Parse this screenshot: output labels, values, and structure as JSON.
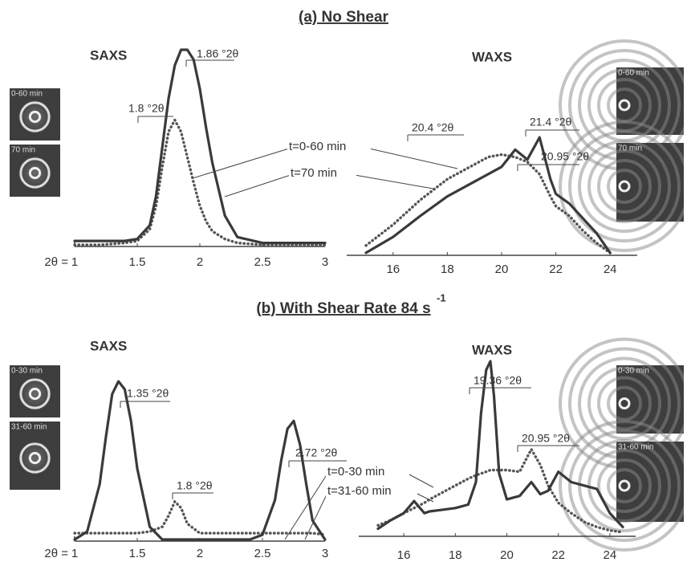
{
  "sections": [
    {
      "title": "(a) No Shear"
    },
    {
      "title": "(b) With Shear Rate 84 s",
      "superscript": "-1"
    }
  ],
  "chart_data": [
    {
      "type": "line",
      "title": "SAXS",
      "xlabel": "2θ =",
      "xlim": [
        1,
        3
      ],
      "xticks": [
        1,
        1.5,
        2,
        2.5,
        3
      ],
      "ylim": [
        0,
        100
      ],
      "image_labels": [
        "0-60 min",
        "70 min"
      ],
      "annotations": [
        "1.86 °2θ",
        "1.8 °2θ"
      ],
      "x": [
        1,
        1.2,
        1.4,
        1.5,
        1.6,
        1.65,
        1.7,
        1.75,
        1.8,
        1.85,
        1.9,
        1.95,
        2,
        2.05,
        2.1,
        2.2,
        2.3,
        2.5,
        2.8,
        3
      ],
      "series": [
        {
          "name": "t=0-60 min",
          "color": "#555555",
          "style": "dotted",
          "values": [
            0,
            0,
            1,
            2,
            8,
            20,
            40,
            58,
            64,
            58,
            45,
            32,
            20,
            12,
            7,
            3,
            1,
            0,
            0,
            0
          ]
        },
        {
          "name": "t=70 min",
          "color": "#3a3a3a",
          "style": "solid",
          "values": [
            2,
            2,
            2,
            3,
            10,
            25,
            50,
            75,
            92,
            100,
            100,
            95,
            80,
            60,
            42,
            15,
            4,
            1,
            1,
            1
          ]
        }
      ]
    },
    {
      "type": "line",
      "title": "WAXS",
      "xlim": [
        15,
        25
      ],
      "xticks": [
        16,
        18,
        20,
        22,
        24
      ],
      "ylim": [
        0,
        100
      ],
      "image_labels": [
        "0-60 min",
        "70 min"
      ],
      "annotations": [
        "20.4 °2θ",
        "21.4 °2θ",
        "20.95 °2θ"
      ],
      "x": [
        15,
        16,
        17,
        18,
        19,
        19.5,
        20,
        20.5,
        20.95,
        21.4,
        21.8,
        22,
        22.5,
        23,
        23.5,
        24
      ],
      "series": [
        {
          "color": "#555555",
          "style": "dotted",
          "values": [
            8,
            25,
            45,
            62,
            74,
            80,
            82,
            80,
            76,
            66,
            48,
            40,
            32,
            20,
            10,
            2
          ]
        },
        {
          "color": "#3a3a3a",
          "style": "solid",
          "values": [
            2,
            15,
            32,
            48,
            60,
            66,
            72,
            86,
            78,
            96,
            62,
            50,
            42,
            30,
            18,
            2
          ]
        }
      ]
    },
    {
      "type": "line",
      "title": "SAXS",
      "xlabel": "2θ =",
      "xlim": [
        1,
        3
      ],
      "xticks": [
        1,
        1.5,
        2,
        2.5,
        3
      ],
      "ylim": [
        0,
        100
      ],
      "image_labels": [
        "0-30 min",
        "31-60 min"
      ],
      "annotations": [
        "1.35 °2θ",
        "1.8 °2θ",
        "2.72 °2θ"
      ],
      "x": [
        1,
        1.1,
        1.2,
        1.25,
        1.3,
        1.35,
        1.4,
        1.45,
        1.5,
        1.6,
        1.7,
        1.75,
        1.8,
        1.85,
        1.9,
        2,
        2.2,
        2.4,
        2.5,
        2.6,
        2.65,
        2.7,
        2.75,
        2.8,
        2.85,
        2.9,
        3
      ],
      "series": [
        {
          "name": "t=0-30 min",
          "color": "#555555",
          "style": "dotted",
          "values": [
            4,
            4,
            4,
            4,
            4,
            4,
            4,
            4,
            4,
            5,
            8,
            15,
            24,
            20,
            10,
            4,
            4,
            4,
            4,
            4,
            4,
            4,
            4,
            4,
            4,
            4,
            3
          ]
        },
        {
          "name": "t=31-60 min",
          "color": "#3a3a3a",
          "style": "solid",
          "values": [
            0,
            5,
            35,
            65,
            92,
            100,
            95,
            75,
            45,
            8,
            0,
            0,
            0,
            0,
            0,
            0,
            0,
            0,
            3,
            25,
            50,
            70,
            75,
            60,
            35,
            12,
            0
          ]
        }
      ]
    },
    {
      "type": "line",
      "title": "WAXS",
      "xlim": [
        15,
        25
      ],
      "xticks": [
        16,
        18,
        20,
        22,
        24
      ],
      "ylim": [
        0,
        100
      ],
      "image_labels": [
        "0-30 min",
        "31-60 min"
      ],
      "annotations": [
        "19.36 °2θ",
        "20.95 °2θ"
      ],
      "x": [
        15,
        15.5,
        16,
        16.4,
        16.8,
        17,
        17.5,
        18,
        18.5,
        18.8,
        19,
        19.2,
        19.36,
        19.5,
        19.7,
        20,
        20.5,
        20.95,
        21.3,
        21.6,
        22,
        22.5,
        23,
        23.5,
        24,
        24.5
      ],
      "series": [
        {
          "color": "#555555",
          "style": "dotted",
          "values": [
            5,
            8,
            12,
            15,
            18,
            20,
            24,
            28,
            32,
            34,
            35,
            36,
            37,
            37,
            37,
            37,
            36,
            49,
            40,
            28,
            18,
            12,
            7,
            4,
            2,
            1
          ]
        },
        {
          "color": "#3a3a3a",
          "style": "solid",
          "values": [
            3,
            8,
            12,
            19,
            12,
            13,
            14,
            15,
            17,
            30,
            70,
            95,
            100,
            80,
            35,
            20,
            22,
            30,
            23,
            25,
            36,
            30,
            28,
            26,
            12,
            4
          ]
        }
      ]
    }
  ]
}
